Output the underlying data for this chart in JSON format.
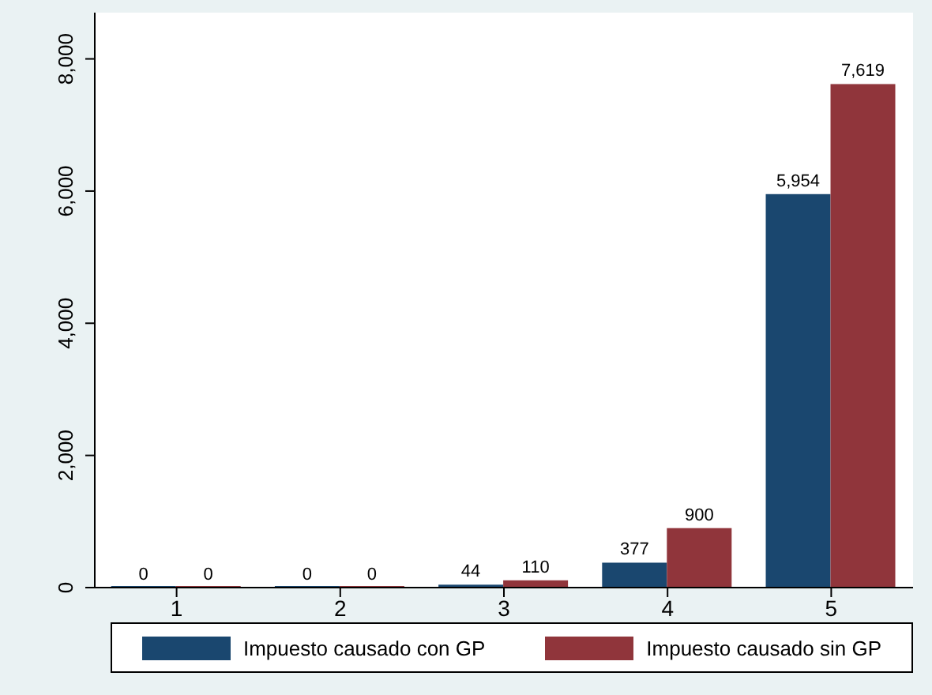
{
  "chart_data": {
    "type": "bar",
    "categories": [
      "1",
      "2",
      "3",
      "4",
      "5"
    ],
    "series": [
      {
        "name": "Impuesto causado con GP",
        "color": "#1a476f",
        "values": [
          0,
          0,
          44,
          377,
          5954
        ],
        "value_labels": [
          "0",
          "0",
          "44",
          "377",
          "5,954"
        ]
      },
      {
        "name": "Impuesto causado sin GP",
        "color": "#90353b",
        "values": [
          0,
          0,
          110,
          900,
          7619
        ],
        "value_labels": [
          "0",
          "0",
          "110",
          "900",
          "7,619"
        ]
      }
    ],
    "ylim": [
      0,
      8700
    ],
    "yticks": [
      {
        "value": 0,
        "label": "0"
      },
      {
        "value": 2000,
        "label": "2,000"
      },
      {
        "value": 4000,
        "label": "4,000"
      },
      {
        "value": 6000,
        "label": "6,000"
      },
      {
        "value": 8000,
        "label": "8,000"
      }
    ],
    "grid": false,
    "legend": "bottom"
  }
}
